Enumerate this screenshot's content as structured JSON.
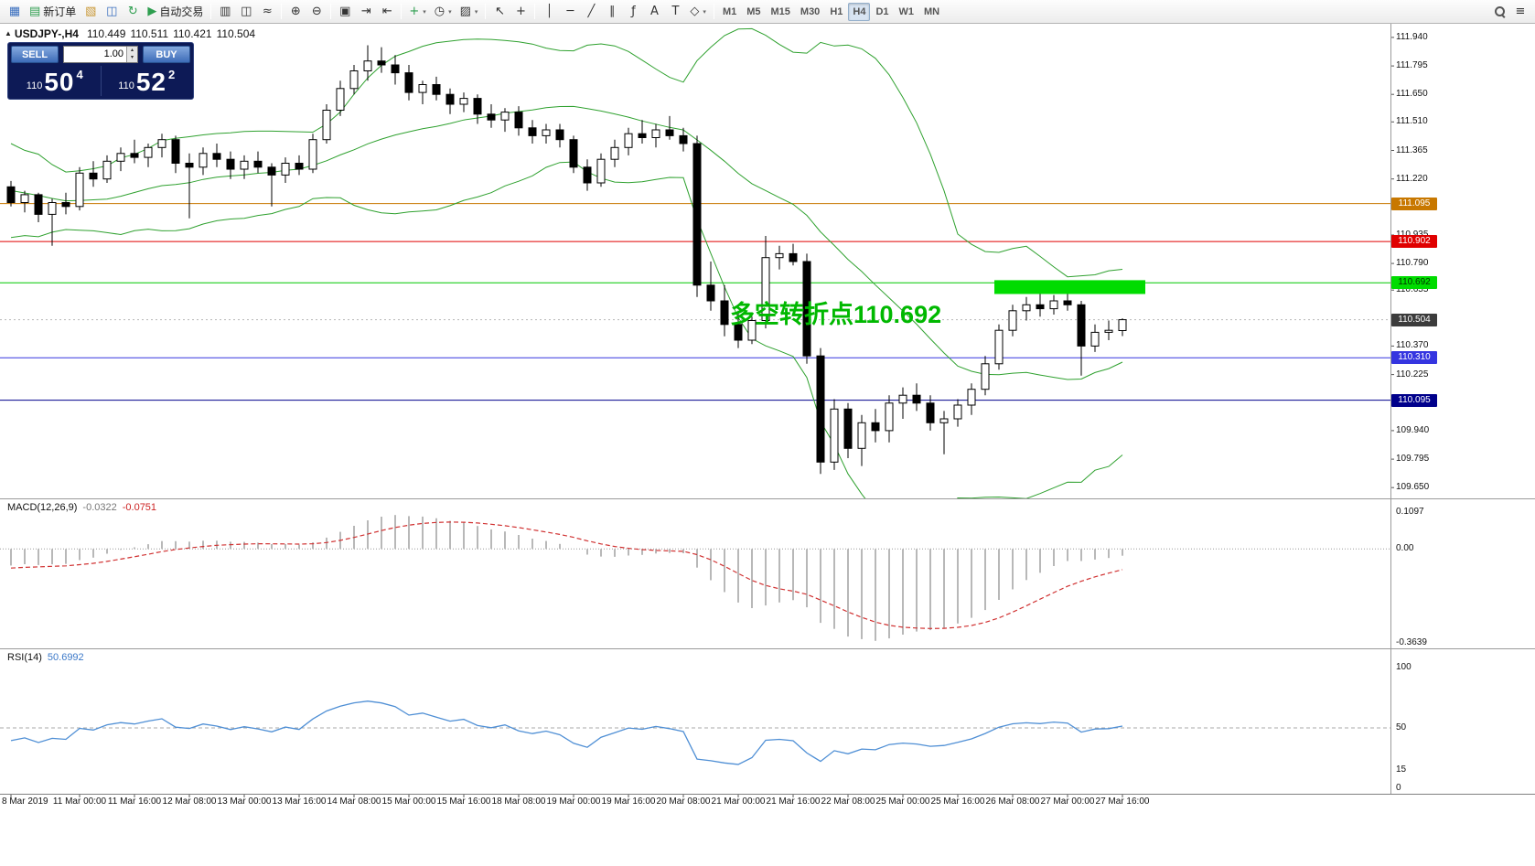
{
  "toolbar": {
    "items": [
      {
        "t": "btn",
        "name": "charts-window-button",
        "glyph": "▦",
        "color": "#3A6FBF"
      },
      {
        "t": "btn",
        "name": "new-order-button",
        "glyph": "▤",
        "color": "#2E9E4F",
        "label": "新订单"
      },
      {
        "t": "btn",
        "name": "profiles-button",
        "glyph": "▧",
        "color": "#C89632"
      },
      {
        "t": "btn",
        "name": "market-watch-button",
        "glyph": "◫",
        "color": "#3A6FBF"
      },
      {
        "t": "btn",
        "name": "refresh-button",
        "glyph": "↻",
        "color": "#2E9E4F"
      },
      {
        "t": "btn",
        "name": "autotrading-button",
        "glyph": "▶",
        "color": "#2E9E4F",
        "label": "自动交易"
      },
      {
        "t": "sep"
      },
      {
        "t": "btn",
        "name": "bar-chart-button",
        "glyph": "▥"
      },
      {
        "t": "btn",
        "name": "candlestick-chart-button",
        "glyph": "◫"
      },
      {
        "t": "btn",
        "name": "line-chart-button",
        "glyph": "≈"
      },
      {
        "t": "sep"
      },
      {
        "t": "btn",
        "name": "zoom-in-button",
        "glyph": "⊕"
      },
      {
        "t": "btn",
        "name": "zoom-out-button",
        "glyph": "⊖"
      },
      {
        "t": "sep"
      },
      {
        "t": "btn",
        "name": "tile-windows-button",
        "glyph": "▣"
      },
      {
        "t": "btn",
        "name": "auto-scroll-button",
        "glyph": "⇥"
      },
      {
        "t": "btn",
        "name": "chart-shift-button",
        "glyph": "⇤"
      },
      {
        "t": "sep"
      },
      {
        "t": "btn",
        "name": "new-chart-button",
        "glyph": "+",
        "color": "#2E9E4F",
        "dd": true
      },
      {
        "t": "btn",
        "name": "periods-button",
        "glyph": "◷",
        "dd": true
      },
      {
        "t": "btn",
        "name": "templates-button",
        "glyph": "▨",
        "dd": true
      },
      {
        "t": "sep"
      },
      {
        "t": "btn",
        "name": "cursor-button",
        "glyph": "↖"
      },
      {
        "t": "btn",
        "name": "crosshair-button",
        "glyph": "+"
      },
      {
        "t": "sep"
      },
      {
        "t": "btn",
        "name": "vertical-line-button",
        "glyph": "│"
      },
      {
        "t": "btn",
        "name": "horizontal-line-button",
        "glyph": "─"
      },
      {
        "t": "btn",
        "name": "trendline-button",
        "glyph": "╱"
      },
      {
        "t": "btn",
        "name": "channel-button",
        "glyph": "∥"
      },
      {
        "t": "btn",
        "name": "fibonacci-button",
        "glyph": "ƒ"
      },
      {
        "t": "btn",
        "name": "text-button",
        "glyph": "A"
      },
      {
        "t": "btn",
        "name": "label-button",
        "glyph": "T"
      },
      {
        "t": "btn",
        "name": "shapes-button",
        "glyph": "◇",
        "dd": true
      },
      {
        "t": "sep"
      },
      {
        "t": "tf",
        "name": "timeframe-m1",
        "label": "M1"
      },
      {
        "t": "tf",
        "name": "timeframe-m5",
        "label": "M5"
      },
      {
        "t": "tf",
        "name": "timeframe-m15",
        "label": "M15"
      },
      {
        "t": "tf",
        "name": "timeframe-m30",
        "label": "M30"
      },
      {
        "t": "tf",
        "name": "timeframe-h1",
        "label": "H1"
      },
      {
        "t": "tf",
        "name": "timeframe-h4",
        "label": "H4",
        "active": true
      },
      {
        "t": "tf",
        "name": "timeframe-d1",
        "label": "D1"
      },
      {
        "t": "tf",
        "name": "timeframe-w1",
        "label": "W1"
      },
      {
        "t": "tf",
        "name": "timeframe-mn",
        "label": "MN"
      },
      {
        "t": "spacer"
      },
      {
        "t": "btn",
        "name": "search-button",
        "glyph": "search"
      },
      {
        "t": "btn",
        "name": "menu-button",
        "glyph": "≡"
      }
    ]
  },
  "quote": {
    "marker": "▲",
    "symbol": "USDJPY-,H4",
    "open": "110.449",
    "high": "110.511",
    "low": "110.421",
    "close": "110.504"
  },
  "one_click": {
    "sell_label": "SELL",
    "buy_label": "BUY",
    "volume": "1.00",
    "spinner_up": "▴",
    "spinner_down": "▾",
    "sell_price_head": "110",
    "sell_price_big": "50",
    "sell_price_sup": "4",
    "buy_price_head": "110",
    "buy_price_big": "52",
    "buy_price_sup": "2"
  },
  "annotation": {
    "text": "多空转折点110.692",
    "color": "#00B800"
  },
  "indicators": {
    "macd": {
      "name": "MACD(12,26,9)",
      "value_main": "-0.0322",
      "value_signal": "-0.0751"
    },
    "rsi": {
      "name": "RSI(14)",
      "value": "50.6992"
    }
  },
  "chart_data": {
    "type": "candlestick",
    "title": "USDJPY-,H4",
    "timeframe": "H4",
    "ylim": [
      109.595,
      112.0
    ],
    "price_ticks": [
      {
        "v": 111.94,
        "t": "111.940"
      },
      {
        "v": 111.795,
        "t": "111.795"
      },
      {
        "v": 111.65,
        "t": "111.650"
      },
      {
        "v": 111.51,
        "t": "111.510"
      },
      {
        "v": 111.365,
        "t": "111.365"
      },
      {
        "v": 111.22,
        "t": "111.220"
      },
      {
        "v": 110.935,
        "t": "110.935"
      },
      {
        "v": 110.79,
        "t": "110.790"
      },
      {
        "v": 110.655,
        "t": "110.655"
      },
      {
        "v": 110.37,
        "t": "110.370"
      },
      {
        "v": 110.225,
        "t": "110.225"
      },
      {
        "v": 109.94,
        "t": "109.940"
      },
      {
        "v": 109.795,
        "t": "109.795"
      },
      {
        "v": 109.65,
        "t": "109.650"
      }
    ],
    "price_badges": [
      {
        "v": 111.095,
        "t": "111.095",
        "bg": "#C87800",
        "fg": "#FFFFFF"
      },
      {
        "v": 110.902,
        "t": "110.902",
        "bg": "#E00000",
        "fg": "#FFFFFF"
      },
      {
        "v": 110.692,
        "t": "110.692",
        "bg": "#00DC00",
        "fg": "#003300"
      },
      {
        "v": 110.504,
        "t": "110.504",
        "bg": "#3C3C3C",
        "fg": "#FFFFFF"
      },
      {
        "v": 110.31,
        "t": "110.310",
        "bg": "#3535E0",
        "fg": "#FFFFFF"
      },
      {
        "v": 110.095,
        "t": "110.095",
        "bg": "#00008B",
        "fg": "#FFFFFF"
      }
    ],
    "hlines": [
      {
        "price": 111.095,
        "color": "#C87800",
        "w": 1
      },
      {
        "price": 110.902,
        "color": "#E00000",
        "w": 1
      },
      {
        "price": 110.692,
        "color": "#00C800",
        "w": 1
      },
      {
        "price": 110.31,
        "color": "#3535E0",
        "w": 1
      },
      {
        "price": 110.095,
        "color": "#00008B",
        "w": 1
      }
    ],
    "bid_line": {
      "price": 110.504,
      "color": "#B8B8B8"
    },
    "highlight_rect": {
      "from_index": 72,
      "to_x": 1252,
      "price_top": 110.705,
      "price_bottom": 110.635,
      "color": "#00DC00"
    },
    "bollinger": {
      "period": 20,
      "deviation": 2,
      "color": "#2FA12F"
    },
    "time_labels": [
      {
        "i": 0,
        "t": "8 Mar 2019"
      },
      {
        "i": 5,
        "t": "11 Mar 00:00"
      },
      {
        "i": 9,
        "t": "11 Mar 16:00"
      },
      {
        "i": 13,
        "t": "12 Mar 08:00"
      },
      {
        "i": 17,
        "t": "13 Mar 00:00"
      },
      {
        "i": 21,
        "t": "13 Mar 16:00"
      },
      {
        "i": 25,
        "t": "14 Mar 08:00"
      },
      {
        "i": 29,
        "t": "15 Mar 00:00"
      },
      {
        "i": 33,
        "t": "15 Mar 16:00"
      },
      {
        "i": 37,
        "t": "18 Mar 08:00"
      },
      {
        "i": 41,
        "t": "19 Mar 00:00"
      },
      {
        "i": 45,
        "t": "19 Mar 16:00"
      },
      {
        "i": 49,
        "t": "20 Mar 08:00"
      },
      {
        "i": 53,
        "t": "21 Mar 00:00"
      },
      {
        "i": 57,
        "t": "21 Mar 16:00"
      },
      {
        "i": 61,
        "t": "22 Mar 08:00"
      },
      {
        "i": 65,
        "t": "25 Mar 00:00"
      },
      {
        "i": 69,
        "t": "25 Mar 16:00"
      },
      {
        "i": 73,
        "t": "26 Mar 08:00"
      },
      {
        "i": 77,
        "t": "27 Mar 00:00"
      },
      {
        "i": 81,
        "t": "27 Mar 16:00"
      }
    ],
    "pre_closes": [
      111.45,
      111.38,
      111.3,
      111.4,
      111.32,
      111.22,
      111.15,
      111.25,
      111.05,
      110.95,
      111.0,
      111.1,
      111.18,
      111.1,
      111.02,
      111.08,
      111.15,
      111.2,
      111.12,
      111.15
    ],
    "ohlc": [
      [
        111.18,
        111.21,
        111.08,
        111.1
      ],
      [
        111.1,
        111.16,
        111.05,
        111.14
      ],
      [
        111.14,
        111.15,
        111.0,
        111.04
      ],
      [
        111.04,
        111.12,
        110.88,
        111.1
      ],
      [
        111.1,
        111.15,
        111.04,
        111.08
      ],
      [
        111.08,
        111.28,
        111.06,
        111.25
      ],
      [
        111.25,
        111.31,
        111.18,
        111.22
      ],
      [
        111.22,
        111.34,
        111.2,
        111.31
      ],
      [
        111.31,
        111.38,
        111.26,
        111.35
      ],
      [
        111.35,
        111.42,
        111.3,
        111.33
      ],
      [
        111.33,
        111.4,
        111.28,
        111.38
      ],
      [
        111.38,
        111.45,
        111.33,
        111.42
      ],
      [
        111.42,
        111.44,
        111.25,
        111.3
      ],
      [
        111.3,
        111.35,
        111.02,
        111.28
      ],
      [
        111.28,
        111.38,
        111.24,
        111.35
      ],
      [
        111.35,
        111.4,
        111.28,
        111.32
      ],
      [
        111.32,
        111.36,
        111.22,
        111.27
      ],
      [
        111.27,
        111.34,
        111.22,
        111.31
      ],
      [
        111.31,
        111.36,
        111.25,
        111.28
      ],
      [
        111.28,
        111.3,
        111.08,
        111.24
      ],
      [
        111.24,
        111.33,
        111.2,
        111.3
      ],
      [
        111.3,
        111.34,
        111.24,
        111.27
      ],
      [
        111.27,
        111.45,
        111.25,
        111.42
      ],
      [
        111.42,
        111.6,
        111.4,
        111.57
      ],
      [
        111.57,
        111.72,
        111.54,
        111.68
      ],
      [
        111.68,
        111.8,
        111.65,
        111.77
      ],
      [
        111.77,
        111.9,
        111.72,
        111.82
      ],
      [
        111.82,
        111.89,
        111.76,
        111.8
      ],
      [
        111.8,
        111.85,
        111.7,
        111.76
      ],
      [
        111.76,
        111.8,
        111.62,
        111.66
      ],
      [
        111.66,
        111.72,
        111.6,
        111.7
      ],
      [
        111.7,
        111.74,
        111.62,
        111.65
      ],
      [
        111.65,
        111.68,
        111.55,
        111.6
      ],
      [
        111.6,
        111.66,
        111.56,
        111.63
      ],
      [
        111.63,
        111.65,
        111.5,
        111.55
      ],
      [
        111.55,
        111.6,
        111.48,
        111.52
      ],
      [
        111.52,
        111.58,
        111.46,
        111.56
      ],
      [
        111.56,
        111.59,
        111.44,
        111.48
      ],
      [
        111.48,
        111.52,
        111.4,
        111.44
      ],
      [
        111.44,
        111.5,
        111.4,
        111.47
      ],
      [
        111.47,
        111.5,
        111.38,
        111.42
      ],
      [
        111.42,
        111.44,
        111.25,
        111.28
      ],
      [
        111.28,
        111.32,
        111.16,
        111.2
      ],
      [
        111.2,
        111.35,
        111.18,
        111.32
      ],
      [
        111.32,
        111.42,
        111.28,
        111.38
      ],
      [
        111.38,
        111.48,
        111.34,
        111.45
      ],
      [
        111.45,
        111.52,
        111.4,
        111.43
      ],
      [
        111.43,
        111.5,
        111.38,
        111.47
      ],
      [
        111.47,
        111.54,
        111.42,
        111.44
      ],
      [
        111.44,
        111.48,
        111.36,
        111.4
      ],
      [
        111.4,
        111.44,
        110.62,
        110.68
      ],
      [
        110.68,
        110.8,
        110.55,
        110.6
      ],
      [
        110.6,
        110.68,
        110.42,
        110.48
      ],
      [
        110.48,
        110.55,
        110.36,
        110.4
      ],
      [
        110.4,
        110.52,
        110.38,
        110.5
      ],
      [
        110.5,
        110.93,
        110.46,
        110.82
      ],
      [
        110.82,
        110.88,
        110.76,
        110.84
      ],
      [
        110.84,
        110.89,
        110.78,
        110.8
      ],
      [
        110.8,
        110.84,
        110.28,
        110.32
      ],
      [
        110.32,
        110.36,
        109.72,
        109.78
      ],
      [
        109.78,
        110.1,
        109.74,
        110.05
      ],
      [
        110.05,
        110.08,
        109.8,
        109.85
      ],
      [
        109.85,
        110.02,
        109.76,
        109.98
      ],
      [
        109.98,
        110.05,
        109.88,
        109.94
      ],
      [
        109.94,
        110.12,
        109.88,
        110.08
      ],
      [
        110.08,
        110.16,
        110.0,
        110.12
      ],
      [
        110.12,
        110.18,
        110.04,
        110.08
      ],
      [
        110.08,
        110.12,
        109.94,
        109.98
      ],
      [
        109.98,
        110.04,
        109.82,
        110.0
      ],
      [
        110.0,
        110.1,
        109.96,
        110.07
      ],
      [
        110.07,
        110.18,
        110.02,
        110.15
      ],
      [
        110.15,
        110.32,
        110.12,
        110.28
      ],
      [
        110.28,
        110.48,
        110.25,
        110.45
      ],
      [
        110.45,
        110.58,
        110.42,
        110.55
      ],
      [
        110.55,
        110.62,
        110.5,
        110.58
      ],
      [
        110.58,
        110.64,
        110.52,
        110.56
      ],
      [
        110.56,
        110.63,
        110.53,
        110.6
      ],
      [
        110.6,
        110.64,
        110.55,
        110.58
      ],
      [
        110.58,
        110.6,
        110.22,
        110.37
      ],
      [
        110.37,
        110.48,
        110.34,
        110.44
      ],
      [
        110.44,
        110.5,
        110.4,
        110.45
      ],
      [
        110.449,
        110.511,
        110.421,
        110.504
      ]
    ],
    "macd": {
      "fast": 12,
      "slow": 26,
      "signal": 9,
      "histogram_color": "#B8B8B8",
      "signal_color": "#D03030",
      "scale_labels": {
        "max": "0.1097",
        "zero": "0.00",
        "min": "-0.3639"
      }
    },
    "rsi": {
      "period": 14,
      "color": "#4F8FD5",
      "level": 50,
      "scale_labels": [
        {
          "v": 100,
          "t": "100"
        },
        {
          "v": 50,
          "t": "50"
        },
        {
          "v": 15,
          "t": "15"
        },
        {
          "v": 0,
          "t": "0"
        }
      ]
    }
  }
}
